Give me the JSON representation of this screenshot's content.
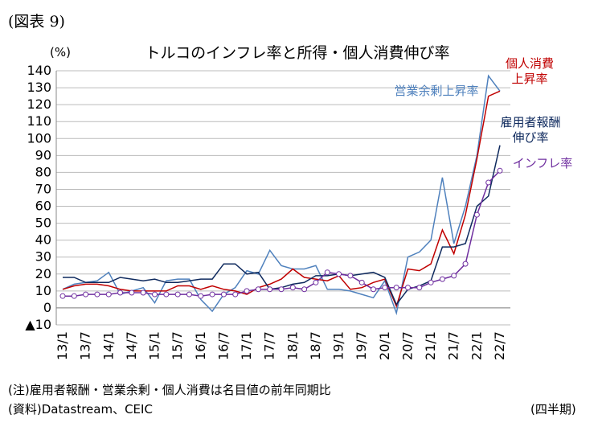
{
  "figure_label": "(図表 9)",
  "note": "(注)雇用者報酬・営業余剰・個人消費は名目値の前年同期比",
  "source": "(資料)Datastream、CEIC",
  "x_unit": "(四半期)",
  "chart_data": {
    "type": "line",
    "title": "トルコのインフレ率と所得・個人消費伸び率",
    "y_label": "(%)",
    "categories": [
      "13/1",
      null,
      "13/7",
      null,
      "14/1",
      null,
      "14/7",
      null,
      "15/1",
      null,
      "15/7",
      null,
      "16/1",
      null,
      "16/7",
      null,
      "17/1",
      null,
      "17/7",
      null,
      "18/1",
      null,
      "18/7",
      null,
      "19/1",
      null,
      "19/7",
      null,
      "20/1",
      null,
      "20/7",
      null,
      "21/1",
      null,
      "21/7",
      null,
      "22/1",
      null,
      "22/7"
    ],
    "ylim": [
      -10,
      140
    ],
    "yticks": [
      {
        "value": -10,
        "label": "▲10"
      },
      0,
      10,
      20,
      30,
      40,
      50,
      60,
      70,
      80,
      90,
      100,
      110,
      120,
      130,
      140
    ],
    "grid": true,
    "series": [
      {
        "name": "営業余剰上昇率",
        "color": "#4f81bd",
        "values": [
          11,
          14,
          15,
          16,
          21,
          8,
          10,
          12,
          3,
          16,
          17,
          17,
          5,
          -2,
          8,
          12,
          22,
          20,
          34,
          25,
          23,
          23,
          25,
          11,
          11,
          10,
          8,
          6,
          16,
          -3,
          30,
          33,
          40,
          77,
          38,
          60,
          90,
          137,
          128
        ]
      },
      {
        "name": "個人消費上昇率",
        "color": "#c00000",
        "values": [
          11,
          13,
          14,
          14,
          13,
          11,
          10,
          10,
          10,
          10,
          13,
          13,
          11,
          13,
          11,
          10,
          8,
          12,
          14,
          17,
          23,
          18,
          17,
          16,
          19,
          11,
          12,
          15,
          17,
          1,
          23,
          22,
          26,
          46,
          32,
          55,
          88,
          125,
          128
        ]
      },
      {
        "name": "雇用者報酬伸び率",
        "color": "#0f2a5e",
        "values": [
          18,
          18,
          15,
          15,
          15,
          18,
          17,
          16,
          17,
          15,
          15,
          16,
          17,
          17,
          26,
          26,
          20,
          21,
          11,
          12,
          14,
          15,
          19,
          19,
          20,
          19,
          20,
          21,
          18,
          2,
          11,
          13,
          16,
          36,
          36,
          38,
          60,
          66,
          96
        ]
      },
      {
        "name": "インフレ率",
        "color": "#7030a0",
        "marker": "circle",
        "values": [
          7,
          7,
          8,
          8,
          8,
          9,
          9,
          9,
          8,
          8,
          8,
          8,
          7,
          8,
          8,
          8,
          10,
          11,
          11,
          11,
          12,
          11,
          15,
          21,
          20,
          19,
          15,
          11,
          12,
          12,
          12,
          12,
          15,
          17,
          19,
          26,
          55,
          74,
          81
        ]
      }
    ]
  }
}
